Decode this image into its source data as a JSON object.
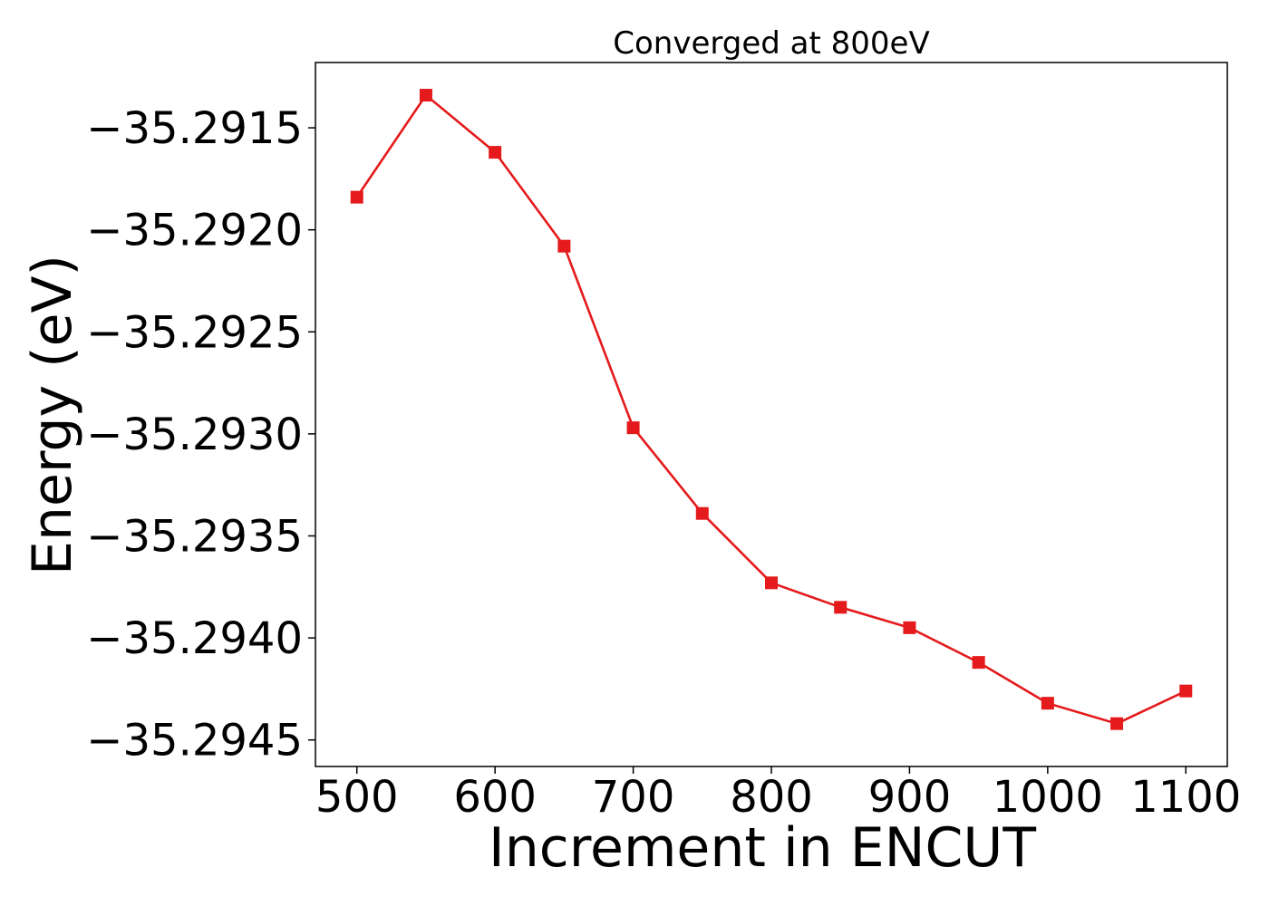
{
  "chart_data": {
    "type": "line",
    "title": "Converged at 800eV",
    "xlabel": "Increment in ENCUT",
    "ylabel": "Energy (eV)",
    "x_ticks": [
      "500",
      "600",
      "700",
      "800",
      "900",
      "1000",
      "1100"
    ],
    "y_ticks": [
      "−35.2915",
      "−35.2920",
      "−35.2925",
      "−35.2930",
      "−35.2935",
      "−35.2940",
      "−35.2945"
    ],
    "xlim": [
      470,
      1130
    ],
    "ylim": [
      -35.29463,
      -35.29118
    ],
    "grid": false,
    "series": [
      {
        "color": "#e41a1c",
        "marker": "square",
        "x": [
          500,
          550,
          600,
          650,
          700,
          750,
          800,
          850,
          900,
          950,
          1000,
          1050,
          1100
        ],
        "y": [
          -35.29184,
          -35.29134,
          -35.29162,
          -35.29208,
          -35.29297,
          -35.29339,
          -35.29373,
          -35.29385,
          -35.29395,
          -35.29412,
          -35.29432,
          -35.29442,
          -35.29426
        ]
      }
    ]
  }
}
